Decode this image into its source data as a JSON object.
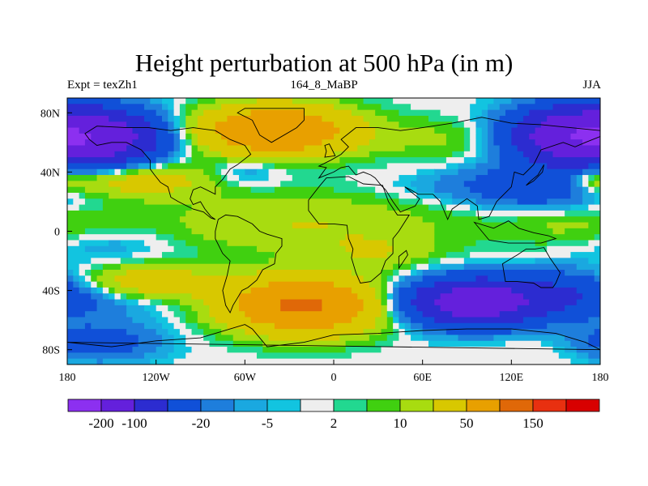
{
  "chart_data": {
    "type": "heatmap",
    "title": "Height perturbation at 500 hPa (in m)",
    "subtitle_left": "Expt = texZh1",
    "subtitle_center": "164_8_MaBP",
    "subtitle_right": "JJA",
    "x_range": [
      -180,
      180
    ],
    "y_range": [
      -90,
      90
    ],
    "x_ticks": [
      {
        "value": -180,
        "label": "180"
      },
      {
        "value": -120,
        "label": "120W"
      },
      {
        "value": -60,
        "label": "60W"
      },
      {
        "value": 0,
        "label": "0"
      },
      {
        "value": 60,
        "label": "60E"
      },
      {
        "value": 120,
        "label": "120E"
      },
      {
        "value": 180,
        "label": "180"
      }
    ],
    "y_ticks": [
      {
        "value": 80,
        "label": "80N"
      },
      {
        "value": 40,
        "label": "40N"
      },
      {
        "value": 0,
        "label": "0"
      },
      {
        "value": -40,
        "label": "40S"
      },
      {
        "value": -80,
        "label": "80S"
      }
    ],
    "colorbar": {
      "colors": [
        "#8c30f0",
        "#6420dc",
        "#2c2cd0",
        "#1050d8",
        "#1e7edc",
        "#1aa8e0",
        "#12c4e0",
        "#eeeeee",
        "#22d890",
        "#40d010",
        "#a8dc10",
        "#d8c800",
        "#e8a000",
        "#e06808",
        "#e83010",
        "#d80000"
      ],
      "levels": [
        -200,
        -100,
        -50,
        -20,
        -10,
        -5,
        -2,
        2,
        5,
        10,
        20,
        50,
        100,
        150,
        200
      ],
      "labels": [
        {
          "level": -200,
          "text": "-200"
        },
        {
          "level": -100,
          "text": "-100"
        },
        {
          "level": -20,
          "text": "-20"
        },
        {
          "level": -5,
          "text": "-5"
        },
        {
          "level": 2,
          "text": "2"
        },
        {
          "level": 10,
          "text": "10"
        },
        {
          "level": 50,
          "text": "50"
        },
        {
          "level": 150,
          "text": "150"
        }
      ]
    },
    "field_blobs": [
      {
        "lon": -160,
        "lat": 63,
        "rlon": 42,
        "rlat": 18,
        "amp": -140
      },
      {
        "lon": -40,
        "lat": 68,
        "rlon": 50,
        "rlat": 16,
        "amp": 100
      },
      {
        "lon": 75,
        "lat": 62,
        "rlon": 50,
        "rlat": 14,
        "amp": 12
      },
      {
        "lon": 160,
        "lat": 65,
        "rlon": 40,
        "rlat": 18,
        "amp": -140
      },
      {
        "lon": -140,
        "lat": 35,
        "rlon": 60,
        "rlat": 12,
        "amp": 35
      },
      {
        "lon": -60,
        "lat": 40,
        "rlon": 25,
        "rlat": 10,
        "amp": -15
      },
      {
        "lon": 140,
        "lat": 30,
        "rlon": 50,
        "rlat": 15,
        "amp": -40
      },
      {
        "lon": 80,
        "lat": 30,
        "rlon": 45,
        "rlat": 10,
        "amp": -8
      },
      {
        "lon": 175,
        "lat": 36,
        "rlon": 20,
        "rlat": 10,
        "amp": 25
      },
      {
        "lon": -20,
        "lat": 5,
        "rlon": 100,
        "rlat": 20,
        "amp": 20
      },
      {
        "lon": 160,
        "lat": 5,
        "rlon": 50,
        "rlat": 15,
        "amp": 12
      },
      {
        "lon": -150,
        "lat": -10,
        "rlon": 40,
        "rlat": 12,
        "amp": -10
      },
      {
        "lon": -170,
        "lat": -45,
        "rlon": 60,
        "rlat": 15,
        "amp": -20
      },
      {
        "lon": -130,
        "lat": -35,
        "rlon": 50,
        "rlat": 12,
        "amp": 40
      },
      {
        "lon": -20,
        "lat": -50,
        "rlon": 50,
        "rlat": 18,
        "amp": 110
      },
      {
        "lon": 95,
        "lat": -48,
        "rlon": 45,
        "rlat": 15,
        "amp": -150
      },
      {
        "lon": 160,
        "lat": -40,
        "rlon": 40,
        "rlat": 15,
        "amp": -30
      },
      {
        "lon": -160,
        "lat": -75,
        "rlon": 40,
        "rlat": 12,
        "amp": -35
      },
      {
        "lon": 150,
        "lat": -80,
        "rlon": 50,
        "rlat": 10,
        "amp": 4
      },
      {
        "lon": 30,
        "lat": -15,
        "rlon": 40,
        "rlat": 12,
        "amp": 15
      }
    ],
    "coastline_outlines": [
      [
        [
          -20,
          83
        ],
        [
          -20,
          75
        ],
        [
          -25,
          70
        ],
        [
          -42,
          60
        ],
        [
          -50,
          65
        ],
        [
          -55,
          75
        ],
        [
          -65,
          80
        ],
        [
          -60,
          83
        ]
      ],
      [
        [
          -168,
          66
        ],
        [
          -160,
          71
        ],
        [
          -140,
          70
        ],
        [
          -125,
          70
        ],
        [
          -110,
          68
        ],
        [
          -95,
          70
        ],
        [
          -80,
          68
        ],
        [
          -70,
          62
        ],
        [
          -60,
          58
        ],
        [
          -56,
          52
        ],
        [
          -65,
          45
        ],
        [
          -70,
          42
        ],
        [
          -75,
          35
        ],
        [
          -80,
          30
        ],
        [
          -80,
          25
        ],
        [
          -90,
          30
        ],
        [
          -95,
          28
        ],
        [
          -97,
          22
        ],
        [
          -95,
          18
        ],
        [
          -90,
          20
        ],
        [
          -87,
          15
        ],
        [
          -83,
          10
        ],
        [
          -80,
          8
        ],
        [
          -83,
          9
        ],
        [
          -88,
          13
        ],
        [
          -95,
          15
        ],
        [
          -105,
          20
        ],
        [
          -110,
          23
        ],
        [
          -112,
          30
        ],
        [
          -117,
          33
        ],
        [
          -121,
          38
        ],
        [
          -124,
          42
        ],
        [
          -124,
          48
        ],
        [
          -130,
          55
        ],
        [
          -140,
          60
        ],
        [
          -150,
          60
        ],
        [
          -160,
          58
        ],
        [
          -165,
          62
        ]
      ],
      [
        [
          -78,
          8
        ],
        [
          -73,
          11
        ],
        [
          -65,
          10
        ],
        [
          -55,
          5
        ],
        [
          -50,
          0
        ],
        [
          -45,
          -2
        ],
        [
          -35,
          -5
        ],
        [
          -35,
          -10
        ],
        [
          -39,
          -15
        ],
        [
          -40,
          -22
        ],
        [
          -48,
          -26
        ],
        [
          -52,
          -33
        ],
        [
          -58,
          -38
        ],
        [
          -62,
          -40
        ],
        [
          -65,
          -45
        ],
        [
          -68,
          -50
        ],
        [
          -70,
          -55
        ],
        [
          -73,
          -50
        ],
        [
          -75,
          -40
        ],
        [
          -72,
          -30
        ],
        [
          -70,
          -20
        ],
        [
          -75,
          -15
        ],
        [
          -80,
          -5
        ],
        [
          -80,
          0
        ]
      ],
      [
        [
          -10,
          36
        ],
        [
          -5,
          43
        ],
        [
          -10,
          44
        ],
        [
          -2,
          48
        ],
        [
          5,
          52
        ],
        [
          10,
          57
        ],
        [
          5,
          62
        ],
        [
          15,
          70
        ],
        [
          30,
          70
        ],
        [
          45,
          68
        ],
        [
          60,
          70
        ],
        [
          80,
          73
        ],
        [
          100,
          77
        ],
        [
          120,
          73
        ],
        [
          140,
          72
        ],
        [
          160,
          70
        ],
        [
          180,
          68
        ],
        [
          180,
          64
        ],
        [
          170,
          60
        ],
        [
          163,
          57
        ],
        [
          155,
          60
        ],
        [
          140,
          55
        ],
        [
          135,
          45
        ],
        [
          128,
          38
        ],
        [
          122,
          40
        ],
        [
          120,
          30
        ],
        [
          110,
          20
        ],
        [
          105,
          10
        ],
        [
          98,
          8
        ],
        [
          97,
          17
        ],
        [
          90,
          22
        ],
        [
          80,
          15
        ],
        [
          77,
          8
        ],
        [
          72,
          20
        ],
        [
          67,
          25
        ],
        [
          57,
          25
        ],
        [
          52,
          28
        ],
        [
          48,
          30
        ],
        [
          58,
          22
        ],
        [
          55,
          17
        ],
        [
          45,
          13
        ],
        [
          40,
          20
        ],
        [
          35,
          28
        ],
        [
          32,
          31
        ],
        [
          28,
          36
        ],
        [
          25,
          38
        ],
        [
          20,
          40
        ],
        [
          15,
          38
        ],
        [
          10,
          44
        ],
        [
          5,
          43
        ],
        [
          0,
          40
        ]
      ],
      [
        [
          -17,
          21
        ],
        [
          -17,
          14
        ],
        [
          -10,
          5
        ],
        [
          0,
          5
        ],
        [
          9,
          4
        ],
        [
          10,
          -5
        ],
        [
          13,
          -12
        ],
        [
          12,
          -18
        ],
        [
          15,
          -28
        ],
        [
          18,
          -35
        ],
        [
          25,
          -34
        ],
        [
          32,
          -28
        ],
        [
          35,
          -20
        ],
        [
          40,
          -15
        ],
        [
          40,
          -5
        ],
        [
          44,
          0
        ],
        [
          51,
          11
        ],
        [
          43,
          11
        ],
        [
          37,
          20
        ],
        [
          33,
          31
        ],
        [
          20,
          32
        ],
        [
          10,
          37
        ],
        [
          -5,
          36
        ],
        [
          -10,
          30
        ]
      ],
      [
        [
          114,
          -22
        ],
        [
          116,
          -34
        ],
        [
          124,
          -34
        ],
        [
          135,
          -35
        ],
        [
          140,
          -38
        ],
        [
          148,
          -38
        ],
        [
          150,
          -35
        ],
        [
          153,
          -28
        ],
        [
          146,
          -18
        ],
        [
          142,
          -11
        ],
        [
          136,
          -12
        ],
        [
          130,
          -12
        ],
        [
          124,
          -16
        ]
      ],
      [
        [
          44,
          -25
        ],
        [
          50,
          -16
        ],
        [
          49,
          -13
        ],
        [
          44,
          -17
        ]
      ],
      [
        [
          95,
          6
        ],
        [
          105,
          -6
        ],
        [
          118,
          -8
        ],
        [
          125,
          -8
        ],
        [
          140,
          -8
        ],
        [
          150,
          -5
        ],
        [
          145,
          -3
        ],
        [
          135,
          -1
        ],
        [
          125,
          2
        ],
        [
          118,
          7
        ],
        [
          108,
          2
        ]
      ],
      [
        [
          130,
          31
        ],
        [
          135,
          34
        ],
        [
          141,
          40
        ],
        [
          142,
          45
        ],
        [
          138,
          38
        ],
        [
          133,
          34
        ]
      ],
      [
        [
          -6,
          50
        ],
        [
          1,
          51
        ],
        [
          -1,
          55
        ],
        [
          -3,
          59
        ],
        [
          -6,
          58
        ],
        [
          -5,
          54
        ]
      ],
      [
        [
          -180,
          -75
        ],
        [
          -150,
          -78
        ],
        [
          -120,
          -74
        ],
        [
          -90,
          -72
        ],
        [
          -60,
          -63
        ],
        [
          -55,
          -66
        ],
        [
          -45,
          -78
        ],
        [
          -20,
          -75
        ],
        [
          0,
          -70
        ],
        [
          30,
          -69
        ],
        [
          60,
          -67
        ],
        [
          90,
          -66
        ],
        [
          120,
          -66
        ],
        [
          150,
          -69
        ],
        [
          170,
          -75
        ],
        [
          180,
          -80
        ]
      ]
    ]
  }
}
